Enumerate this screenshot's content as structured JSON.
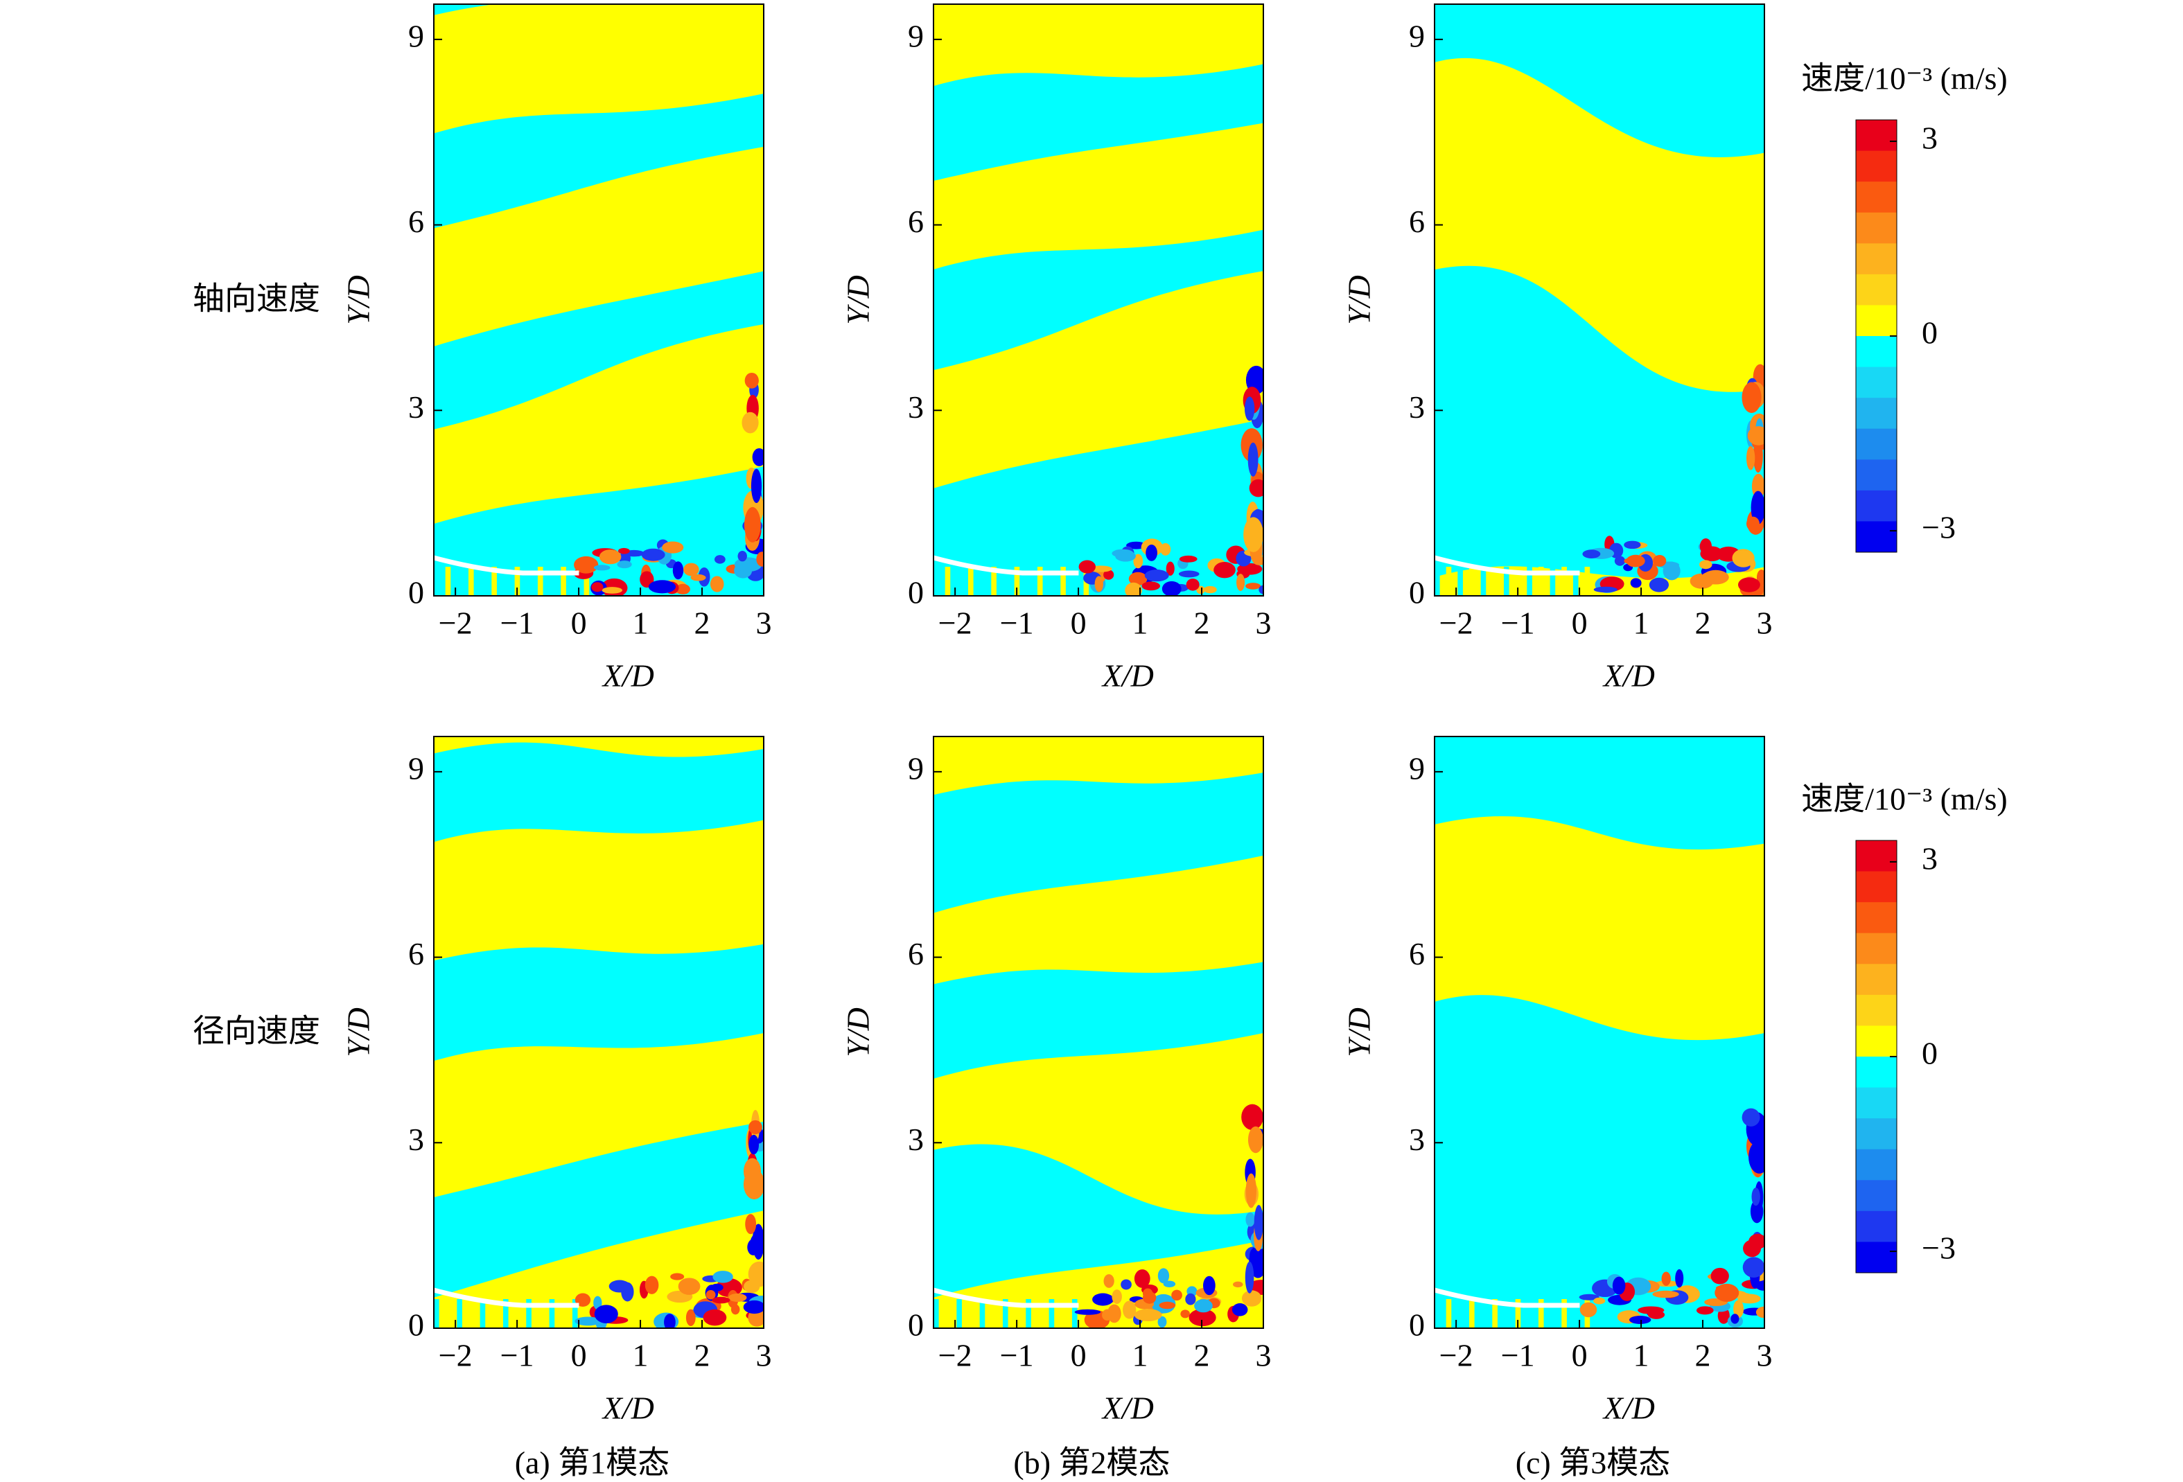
{
  "chart_data": [
    {
      "type": "contour",
      "row_label": "轴向速度",
      "x_label": "X/D",
      "y_label": "Y/D",
      "xlim": [
        -2.35,
        3
      ],
      "ylim": [
        0,
        9.57
      ],
      "xticks": [
        {
          "value": -2,
          "label": "−2"
        },
        {
          "value": -1,
          "label": "−1"
        },
        0,
        1,
        2,
        3
      ],
      "yticks": [
        0,
        3,
        6,
        9
      ]
    },
    {
      "type": "contour",
      "x_label": "X/D",
      "y_label": "Y/D",
      "xlim": [
        -2.35,
        3
      ],
      "ylim": [
        0,
        9.57
      ],
      "xticks": [
        {
          "value": -2,
          "label": "−2"
        },
        {
          "value": -1,
          "label": "−1"
        },
        0,
        1,
        2,
        3
      ],
      "yticks": [
        0,
        3,
        6,
        9
      ]
    },
    {
      "type": "contour",
      "x_label": "X/D",
      "y_label": "Y/D",
      "xlim": [
        -2.35,
        3
      ],
      "ylim": [
        0,
        9.57
      ],
      "xticks": [
        {
          "value": -2,
          "label": "−2"
        },
        {
          "value": -1,
          "label": "−1"
        },
        0,
        1,
        2,
        3
      ],
      "yticks": [
        0,
        3,
        6,
        9
      ]
    },
    {
      "type": "contour",
      "row_label": "径向速度",
      "caption": "(a) 第1模态",
      "x_label": "X/D",
      "y_label": "Y/D",
      "xlim": [
        -2.35,
        3
      ],
      "ylim": [
        0,
        9.57
      ],
      "xticks": [
        {
          "value": -2,
          "label": "−2"
        },
        {
          "value": -1,
          "label": "−1"
        },
        0,
        1,
        2,
        3
      ],
      "yticks": [
        0,
        3,
        6,
        9
      ]
    },
    {
      "type": "contour",
      "caption": "(b) 第2模态",
      "x_label": "X/D",
      "y_label": "Y/D",
      "xlim": [
        -2.35,
        3
      ],
      "ylim": [
        0,
        9.57
      ],
      "xticks": [
        {
          "value": -2,
          "label": "−2"
        },
        {
          "value": -1,
          "label": "−1"
        },
        0,
        1,
        2,
        3
      ],
      "yticks": [
        0,
        3,
        6,
        9
      ]
    },
    {
      "type": "contour",
      "caption": "(c) 第3模态",
      "x_label": "X/D",
      "y_label": "Y/D",
      "xlim": [
        -2.35,
        3
      ],
      "ylim": [
        0,
        9.57
      ],
      "xticks": [
        {
          "value": -2,
          "label": "−2"
        },
        {
          "value": -1,
          "label": "−1"
        },
        0,
        1,
        2,
        3
      ],
      "yticks": [
        0,
        3,
        6,
        9
      ]
    },
    {
      "type": "colorbar",
      "title": "速度/10⁻³ (m/s)",
      "ylim": [
        -3.33,
        3.33
      ],
      "yticks": [
        3,
        0,
        {
          "value": -3,
          "label": "−3"
        }
      ],
      "colors": [
        "#e8001a",
        "#f52b10",
        "#fa5a10",
        "#fc8a1a",
        "#fdb21e",
        "#fdd418",
        "#ffff00",
        "#00ffff",
        "#18d8f5",
        "#20b4ef",
        "#1d8cee",
        "#1e64f0",
        "#1e38f0",
        "#0000f0"
      ]
    },
    {
      "type": "colorbar",
      "title": "速度/10⁻³ (m/s)",
      "ylim": [
        -3.33,
        3.33
      ],
      "yticks": [
        3,
        0,
        {
          "value": -3,
          "label": "−3"
        }
      ],
      "colors": [
        "#e8001a",
        "#f52b10",
        "#fa5a10",
        "#fc8a1a",
        "#fdb21e",
        "#fdd418",
        "#ffff00",
        "#00ffff",
        "#18d8f5",
        "#20b4ef",
        "#1d8cee",
        "#1e64f0",
        "#1e38f0",
        "#0000f0"
      ]
    }
  ]
}
